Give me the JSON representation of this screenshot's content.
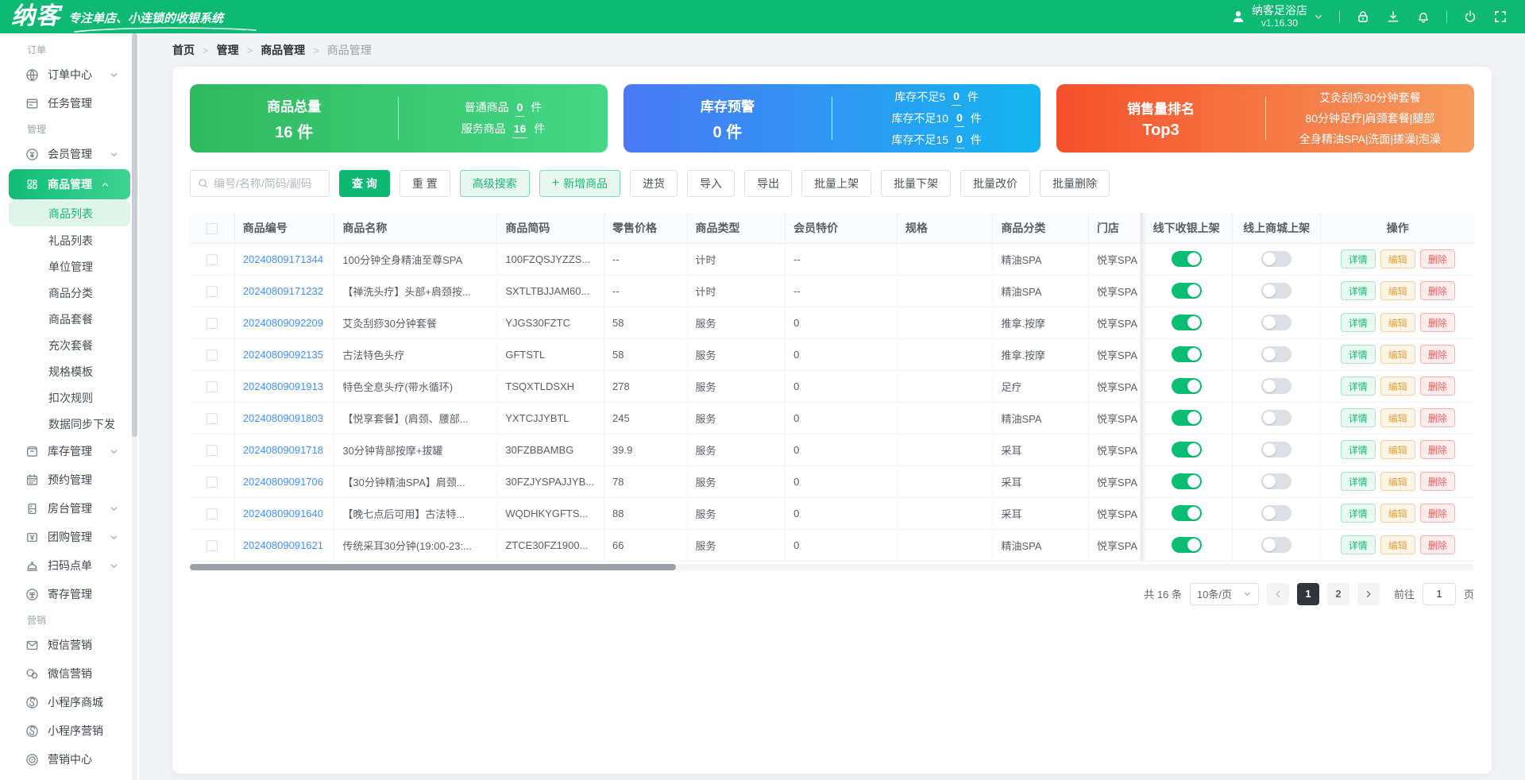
{
  "colors": {
    "brand_green": "#0eb974",
    "toggle_on": "#0cbd74",
    "link_blue": "#4090f7",
    "card_green": [
      "#2fb95f",
      "#45d686"
    ],
    "card_blue": [
      "#4b79f6",
      "#13b5f0"
    ],
    "card_orange": [
      "#f4502b",
      "#f79d5f"
    ]
  },
  "header": {
    "brand": "纳客",
    "tagline": "专注单店、小连锁的收银系统",
    "store_name": "纳客足浴店",
    "version": "v1.16.30",
    "icons": [
      "user-icon",
      "chevron-down-icon",
      "lock-icon",
      "download-icon",
      "bell-icon",
      "power-icon",
      "fullscreen-icon"
    ]
  },
  "sidebar": {
    "sections": [
      {
        "label": "订单",
        "items": [
          {
            "label": "订单中心",
            "icon": "globe-icon",
            "chevron": "down"
          },
          {
            "label": "任务管理",
            "icon": "task-icon"
          }
        ]
      },
      {
        "label": "管理",
        "items": [
          {
            "label": "会员管理",
            "icon": "member-icon",
            "chevron": "down"
          },
          {
            "label": "商品管理",
            "icon": "goods-icon",
            "chevron": "up",
            "active": true,
            "children": [
              {
                "label": "商品列表",
                "active": true
              },
              {
                "label": "礼品列表"
              },
              {
                "label": "单位管理"
              },
              {
                "label": "商品分类"
              },
              {
                "label": "商品套餐"
              },
              {
                "label": "充次套餐"
              },
              {
                "label": "规格模板"
              },
              {
                "label": "扣次规则"
              },
              {
                "label": "数据同步下发"
              }
            ]
          },
          {
            "label": "库存管理",
            "icon": "inventory-icon",
            "chevron": "down"
          },
          {
            "label": "预约管理",
            "icon": "calendar-icon"
          },
          {
            "label": "房台管理",
            "icon": "room-icon",
            "chevron": "down"
          },
          {
            "label": "团购管理",
            "icon": "groupbuy-icon",
            "chevron": "down"
          },
          {
            "label": "扫码点单",
            "icon": "scan-order-icon",
            "chevron": "down"
          },
          {
            "label": "寄存管理",
            "icon": "deposit-icon"
          }
        ]
      },
      {
        "label": "营销",
        "items": [
          {
            "label": "短信营销",
            "icon": "sms-icon"
          },
          {
            "label": "微信营销",
            "icon": "wechat-icon"
          },
          {
            "label": "小程序商城",
            "icon": "miniapp-icon"
          },
          {
            "label": "小程序营销",
            "icon": "miniapp-icon"
          },
          {
            "label": "营销中心",
            "icon": "target-icon"
          }
        ]
      }
    ]
  },
  "breadcrumb": {
    "items": [
      "首页",
      "管理",
      "商品管理",
      "商品管理"
    ]
  },
  "cards": [
    {
      "style": "green",
      "title": "商品总量",
      "value": "16 件",
      "rows": [
        {
          "label": "普通商品",
          "num": "0",
          "unit": "件"
        },
        {
          "label": "服务商品",
          "num": "16",
          "unit": "件"
        }
      ]
    },
    {
      "style": "blue",
      "title": "库存预警",
      "value": "0 件",
      "rows": [
        {
          "label": "库存不足5",
          "num": "0",
          "unit": "件"
        },
        {
          "label": "库存不足10",
          "num": "0",
          "unit": "件"
        },
        {
          "label": "库存不足15",
          "num": "0",
          "unit": "件"
        }
      ]
    },
    {
      "style": "orange",
      "title": "销售量排名",
      "value": "Top3",
      "rows": [
        {
          "label": "艾灸刮痧30分钟套餐"
        },
        {
          "label": "80分钟足疗|肩颈套餐|腿部"
        },
        {
          "label": "全身精油SPA|洗面|搓澡|泡澡"
        }
      ]
    }
  ],
  "toolbar": {
    "search_placeholder": "编号/名称/简码/副码",
    "buttons": [
      {
        "label": "查 询",
        "style": "primary"
      },
      {
        "label": "重 置",
        "style": "plain"
      },
      {
        "label": "高级搜索",
        "style": "soft"
      },
      {
        "label": "新增商品",
        "style": "soft",
        "icon": "plus-icon"
      },
      {
        "label": "进货",
        "style": "plain"
      },
      {
        "label": "导入",
        "style": "plain"
      },
      {
        "label": "导出",
        "style": "plain"
      },
      {
        "label": "批量上架",
        "style": "plain"
      },
      {
        "label": "批量下架",
        "style": "plain"
      },
      {
        "label": "批量改价",
        "style": "plain"
      },
      {
        "label": "批量删除",
        "style": "plain"
      }
    ]
  },
  "table": {
    "columns": [
      "商品编号",
      "商品名称",
      "商品简码",
      "零售价格",
      "商品类型",
      "会员特价",
      "规格",
      "商品分类",
      "门店",
      "线下收银上架",
      "线上商城上架",
      "操作"
    ],
    "actions": [
      "详情",
      "编辑",
      "删除"
    ],
    "rows": [
      {
        "code": "20240809171344",
        "name": "100分钟全身精油至尊SPA",
        "short": "100FZQSJYZZS...",
        "price": "--",
        "type": "计时",
        "member": "--",
        "spec": "",
        "category": "精油SPA",
        "store": "悦享SPA",
        "offline": true,
        "online": false
      },
      {
        "code": "20240809171232",
        "name": "【禅洗头疗】头部+肩颈按...",
        "short": "SXTLTBJJAM60...",
        "price": "--",
        "type": "计时",
        "member": "--",
        "spec": "",
        "category": "精油SPA",
        "store": "悦享SPA",
        "offline": true,
        "online": false
      },
      {
        "code": "20240809092209",
        "name": "艾灸刮痧30分钟套餐",
        "short": "YJGS30FZTC",
        "price": "58",
        "type": "服务",
        "member": "0",
        "spec": "",
        "category": "推拿.按摩",
        "store": "悦享SPA",
        "offline": true,
        "online": false
      },
      {
        "code": "20240809092135",
        "name": "古法特色头疗",
        "short": "GFTSTL",
        "price": "58",
        "type": "服务",
        "member": "0",
        "spec": "",
        "category": "推拿.按摩",
        "store": "悦享SPA",
        "offline": true,
        "online": false
      },
      {
        "code": "20240809091913",
        "name": "特色全息头疗(带水循环)",
        "short": "TSQXTLDSXH",
        "price": "278",
        "type": "服务",
        "member": "0",
        "spec": "",
        "category": "足疗",
        "store": "悦享SPA",
        "offline": true,
        "online": false
      },
      {
        "code": "20240809091803",
        "name": "【悦享套餐】(肩颈、腰部...",
        "short": "YXTCJJYBTL",
        "price": "245",
        "type": "服务",
        "member": "0",
        "spec": "",
        "category": "精油SPA",
        "store": "悦享SPA",
        "offline": true,
        "online": false
      },
      {
        "code": "20240809091718",
        "name": "30分钟背部按摩+拔罐",
        "short": "30FZBBAMBG",
        "price": "39.9",
        "type": "服务",
        "member": "0",
        "spec": "",
        "category": "采耳",
        "store": "悦享SPA",
        "offline": true,
        "online": false
      },
      {
        "code": "20240809091706",
        "name": "【30分钟精油SPA】肩颈...",
        "short": "30FZJYSPAJJYB...",
        "price": "78",
        "type": "服务",
        "member": "0",
        "spec": "",
        "category": "采耳",
        "store": "悦享SPA",
        "offline": true,
        "online": false
      },
      {
        "code": "20240809091640",
        "name": "【晚七点后可用】古法特...",
        "short": "WQDHKYGFTS...",
        "price": "88",
        "type": "服务",
        "member": "0",
        "spec": "",
        "category": "采耳",
        "store": "悦享SPA",
        "offline": true,
        "online": false
      },
      {
        "code": "20240809091621",
        "name": "传统采耳30分钟(19:00-23:...",
        "short": "ZTCE30FZ1900...",
        "price": "66",
        "type": "服务",
        "member": "0",
        "spec": "",
        "category": "精油SPA",
        "store": "悦享SPA",
        "offline": true,
        "online": false
      }
    ]
  },
  "pagination": {
    "total_text": "共 16 条",
    "page_size": "10条/页",
    "pages": [
      "1",
      "2"
    ],
    "active_page": "1",
    "goto_label": "前往",
    "goto_value": "1",
    "page_unit": "页"
  }
}
